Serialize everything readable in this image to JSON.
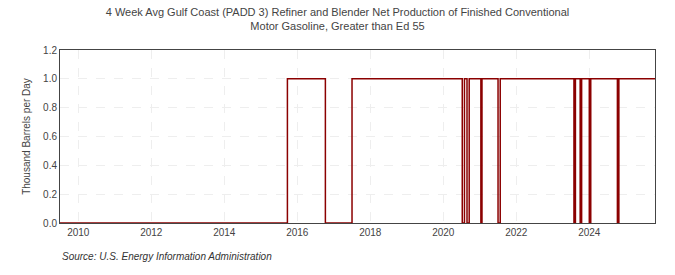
{
  "chart_data": {
    "type": "line",
    "title": "4 Week Avg Gulf Coast (PADD 3) Refiner and Blender Net Production of Finished Conventional\nMotor Gasoline, Greater than Ed 55",
    "ylabel": "Thousand Barrels per Day",
    "annotations": [
      "Source: U.S. Energy Information Administration"
    ],
    "color": "#8b0000",
    "grid": true,
    "x": [
      2009.5,
      2015.73,
      2015.73,
      2016.77,
      2016.77,
      2017.5,
      2017.5,
      2020.52,
      2020.52,
      2020.58,
      2020.58,
      2020.65,
      2020.65,
      2020.71,
      2020.71,
      2021.03,
      2021.03,
      2021.06,
      2021.06,
      2021.5,
      2021.5,
      2021.56,
      2021.56,
      2023.58,
      2023.58,
      2023.62,
      2023.62,
      2023.75,
      2023.75,
      2023.79,
      2023.79,
      2024.0,
      2024.0,
      2024.04,
      2024.04,
      2024.77,
      2024.77,
      2024.81,
      2024.81,
      2025.8
    ],
    "values": [
      0,
      0,
      1,
      1,
      0,
      0,
      1,
      1,
      0,
      0,
      1,
      1,
      0,
      0,
      1,
      1,
      0,
      0,
      1,
      1,
      0,
      0,
      1,
      1,
      0,
      0,
      1,
      1,
      0,
      0,
      1,
      1,
      0,
      0,
      1,
      1,
      0,
      0,
      1,
      1
    ],
    "xlim": [
      2009.5,
      2025.8
    ],
    "xticks": [
      2010,
      2012,
      2014,
      2016,
      2018,
      2020,
      2022,
      2024
    ],
    "ylim": [
      0,
      1.2
    ],
    "yticks": [
      {
        "value": 0.0,
        "label": "0.0"
      },
      0.2,
      0.4,
      0.6,
      0.8,
      {
        "value": 1.0,
        "label": "1.0"
      },
      1.2
    ]
  }
}
